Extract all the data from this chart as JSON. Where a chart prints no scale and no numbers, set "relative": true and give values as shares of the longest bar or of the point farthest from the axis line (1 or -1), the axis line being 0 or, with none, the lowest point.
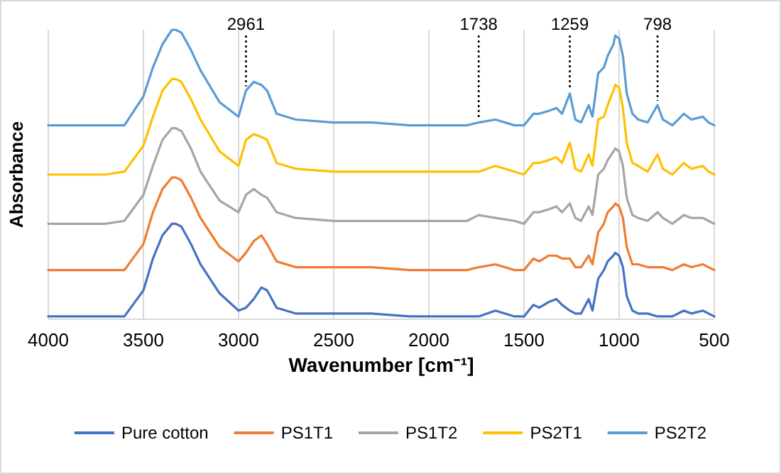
{
  "chart_data": {
    "type": "line",
    "relative": true,
    "xlabel": "Wavenumber [cm⁻¹]",
    "ylabel": "Absorbance",
    "xlim": [
      4000,
      500
    ],
    "xticks": [
      4000,
      3500,
      3000,
      2500,
      2000,
      1500,
      1000,
      500
    ],
    "grid": "x",
    "legend": "bottom",
    "line_style": "solid",
    "marker": "none",
    "x": [
      4000,
      3700,
      3600,
      3500,
      3450,
      3400,
      3350,
      3330,
      3300,
      3250,
      3200,
      3100,
      3000,
      2961,
      2920,
      2880,
      2850,
      2800,
      2700,
      2500,
      2300,
      2100,
      2000,
      1800,
      1738,
      1650,
      1550,
      1500,
      1450,
      1420,
      1370,
      1330,
      1300,
      1259,
      1230,
      1200,
      1160,
      1140,
      1110,
      1080,
      1060,
      1030,
      1020,
      1000,
      980,
      960,
      930,
      900,
      850,
      798,
      770,
      720,
      660,
      620,
      560,
      530,
      500
    ],
    "series": [
      {
        "name": "Pure cotton",
        "color": "#4472c4",
        "values": [
          0.01,
          0.01,
          0.01,
          0.1,
          0.21,
          0.29,
          0.33,
          0.33,
          0.32,
          0.26,
          0.19,
          0.09,
          0.03,
          0.04,
          0.07,
          0.11,
          0.1,
          0.04,
          0.02,
          0.02,
          0.02,
          0.01,
          0.01,
          0.01,
          0.01,
          0.03,
          0.01,
          0.01,
          0.05,
          0.04,
          0.06,
          0.07,
          0.05,
          0.03,
          0.02,
          0.02,
          0.07,
          0.03,
          0.14,
          0.17,
          0.2,
          0.22,
          0.23,
          0.22,
          0.18,
          0.08,
          0.03,
          0.02,
          0.02,
          0.01,
          0.01,
          0.01,
          0.03,
          0.02,
          0.03,
          0.02,
          0.01
        ]
      },
      {
        "name": "PS1T1",
        "color": "#ed7d31",
        "values": [
          0.17,
          0.17,
          0.17,
          0.26,
          0.37,
          0.45,
          0.49,
          0.49,
          0.48,
          0.42,
          0.35,
          0.25,
          0.2,
          0.23,
          0.27,
          0.29,
          0.26,
          0.2,
          0.18,
          0.18,
          0.18,
          0.17,
          0.17,
          0.17,
          0.18,
          0.19,
          0.17,
          0.17,
          0.21,
          0.2,
          0.22,
          0.22,
          0.21,
          0.21,
          0.18,
          0.18,
          0.22,
          0.19,
          0.3,
          0.33,
          0.37,
          0.39,
          0.4,
          0.39,
          0.35,
          0.25,
          0.19,
          0.19,
          0.18,
          0.18,
          0.18,
          0.17,
          0.19,
          0.18,
          0.19,
          0.18,
          0.17
        ]
      },
      {
        "name": "PS1T2",
        "color": "#a5a5a5",
        "values": [
          0.33,
          0.33,
          0.34,
          0.43,
          0.53,
          0.62,
          0.66,
          0.66,
          0.65,
          0.59,
          0.51,
          0.41,
          0.37,
          0.43,
          0.45,
          0.43,
          0.42,
          0.37,
          0.35,
          0.34,
          0.34,
          0.34,
          0.34,
          0.34,
          0.36,
          0.35,
          0.34,
          0.33,
          0.37,
          0.37,
          0.38,
          0.39,
          0.37,
          0.4,
          0.35,
          0.34,
          0.39,
          0.36,
          0.5,
          0.52,
          0.55,
          0.58,
          0.59,
          0.58,
          0.53,
          0.42,
          0.36,
          0.35,
          0.34,
          0.37,
          0.35,
          0.33,
          0.36,
          0.35,
          0.35,
          0.34,
          0.33
        ]
      },
      {
        "name": "PS2T1",
        "color": "#ffc000",
        "values": [
          0.5,
          0.5,
          0.51,
          0.6,
          0.7,
          0.79,
          0.83,
          0.83,
          0.82,
          0.76,
          0.69,
          0.58,
          0.53,
          0.62,
          0.64,
          0.63,
          0.62,
          0.54,
          0.52,
          0.51,
          0.51,
          0.51,
          0.51,
          0.51,
          0.51,
          0.53,
          0.51,
          0.5,
          0.54,
          0.54,
          0.55,
          0.56,
          0.54,
          0.61,
          0.52,
          0.51,
          0.57,
          0.53,
          0.69,
          0.7,
          0.74,
          0.79,
          0.81,
          0.8,
          0.73,
          0.61,
          0.54,
          0.53,
          0.51,
          0.57,
          0.52,
          0.5,
          0.54,
          0.52,
          0.53,
          0.51,
          0.5
        ]
      },
      {
        "name": "PS2T2",
        "color": "#5b9bd5",
        "values": [
          0.67,
          0.67,
          0.67,
          0.77,
          0.87,
          0.95,
          1.0,
          1.0,
          0.99,
          0.93,
          0.86,
          0.75,
          0.7,
          0.79,
          0.82,
          0.81,
          0.79,
          0.71,
          0.69,
          0.68,
          0.68,
          0.67,
          0.67,
          0.67,
          0.68,
          0.69,
          0.67,
          0.67,
          0.71,
          0.71,
          0.72,
          0.73,
          0.71,
          0.78,
          0.69,
          0.68,
          0.74,
          0.7,
          0.85,
          0.87,
          0.91,
          0.95,
          0.98,
          0.97,
          0.91,
          0.78,
          0.71,
          0.69,
          0.68,
          0.74,
          0.69,
          0.67,
          0.71,
          0.69,
          0.7,
          0.68,
          0.67
        ]
      }
    ],
    "ref_lines": [
      {
        "axis": "x",
        "value": 2961,
        "label": "2961",
        "color": "#000000",
        "line_style": "dotted"
      },
      {
        "axis": "x",
        "value": 1738,
        "label": "1738",
        "color": "#000000",
        "line_style": "dotted"
      },
      {
        "axis": "x",
        "value": 1259,
        "label": "1259",
        "color": "#000000",
        "line_style": "dotted"
      },
      {
        "axis": "x",
        "value": 798,
        "label": "798",
        "color": "#000000",
        "line_style": "dotted"
      }
    ]
  }
}
